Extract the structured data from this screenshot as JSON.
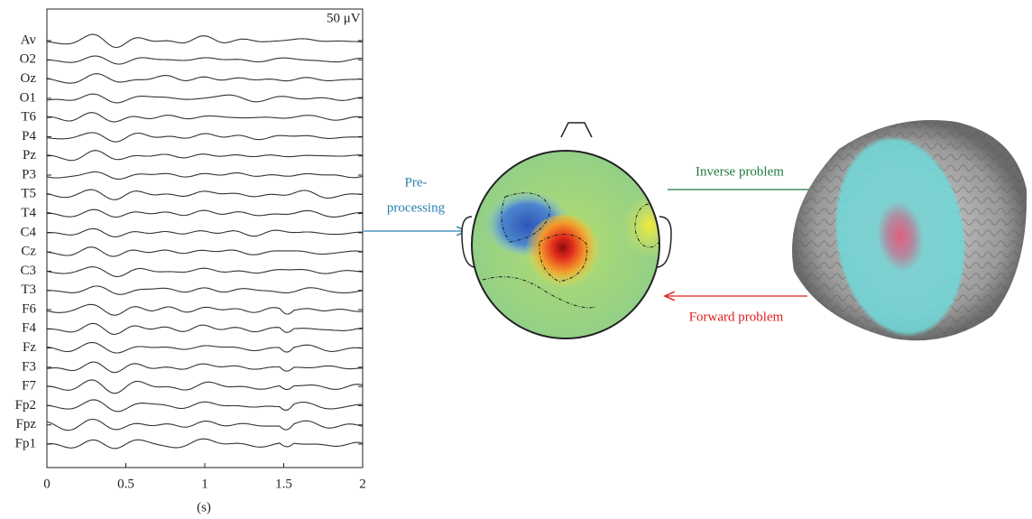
{
  "eeg": {
    "scale_label": "50 μV",
    "channels": [
      "Av",
      "O2",
      "Oz",
      "O1",
      "T6",
      "P4",
      "Pz",
      "P3",
      "T5",
      "T4",
      "C4",
      "Cz",
      "C3",
      "T3",
      "F6",
      "F4",
      "Fz",
      "F3",
      "F7",
      "Fp2",
      "Fpz",
      "Fp1"
    ],
    "xticks": [
      0,
      0.5,
      1,
      1.5,
      2
    ],
    "x_label": "(s)"
  },
  "arrows": {
    "preprocessing": [
      "Pre-",
      "processing"
    ],
    "inverse": "Inverse problem",
    "forward": "Forward problem"
  }
}
